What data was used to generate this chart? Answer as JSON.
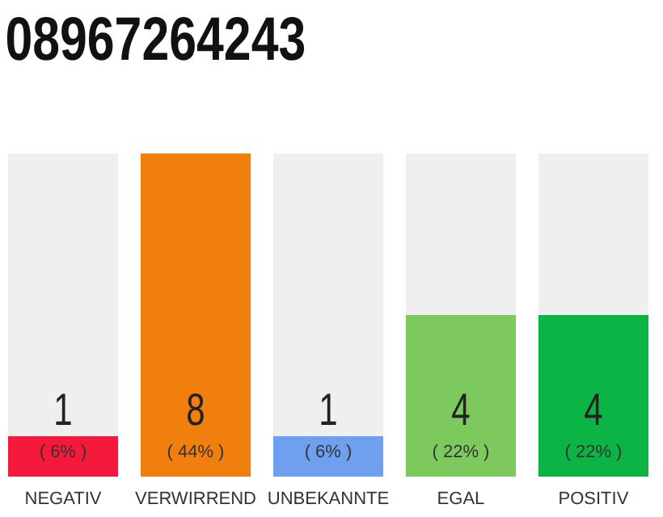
{
  "chart_data": {
    "type": "bar",
    "title": "08967264243",
    "categories": [
      "NEGATIV",
      "VERWIRREND",
      "UNBEKANNTE",
      "EGAL",
      "POSITIV"
    ],
    "values": [
      1,
      8,
      1,
      4,
      4
    ],
    "colors": [
      "#f5193b",
      "#f07f0d",
      "#6ea0ef",
      "#7dc95e",
      "#0cb445"
    ],
    "ylim": [
      0,
      8
    ],
    "tick_labels": "x",
    "data_labels": true,
    "annotations": [
      "( 6% )",
      "( 44% )",
      "( 6% )",
      "( 22% )",
      "( 22% )"
    ]
  }
}
